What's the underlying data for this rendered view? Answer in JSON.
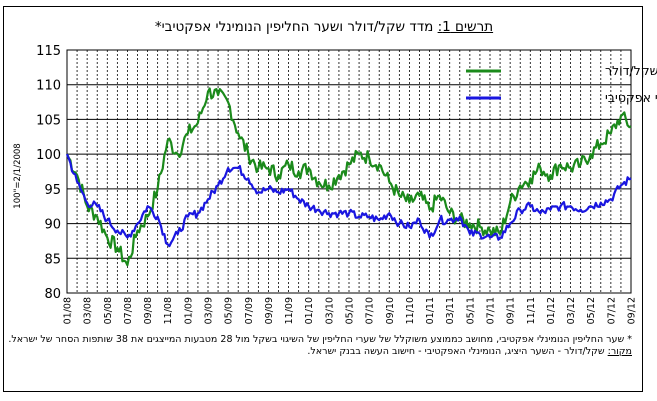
{
  "title": {
    "prefix": "תרשים 1:",
    "text": "מדד שקל/דולר ושער החליפין הנומינלי אפקטיבי*"
  },
  "base_note": "100\"=2/1/2008",
  "notes": {
    "footnote": "* שער החליפין הנומינלי אפקטיבי, מחושב כממוצע משוקלל של שערי החליפין של השיגוי בשקל מול 28 מטבעות המייצגים את 38 שותפות הסחר של ישראל.",
    "source_label": "מקור:",
    "source_text": " שקל/דולר - השער היציג, הנומינלי האפקטיבי - חישוב העשה בבנק ישראל."
  },
  "colors": {
    "usd": "#1b8a1b",
    "effective": "#1a16e0",
    "grid": "#000000"
  },
  "chart_data": {
    "type": "line",
    "title": "מדד שקל/דולר ושער החליפין הנומינלי אפקטיבי*",
    "xlabel": "",
    "ylabel": "",
    "ylim": [
      80,
      115
    ],
    "yticks": [
      80,
      85,
      90,
      95,
      100,
      105,
      110,
      115
    ],
    "x_range": [
      "01/08",
      "09/12"
    ],
    "x_tick_labels": [
      "01/08",
      "03/08",
      "05/08",
      "07/08",
      "09/08",
      "11/08",
      "01/09",
      "03/09",
      "05/09",
      "07/09",
      "09/09",
      "11/09",
      "01/10",
      "03/10",
      "05/10",
      "07/10",
      "09/10",
      "11/10",
      "01/11",
      "03/11",
      "05/11",
      "07/11",
      "09/11",
      "11/11",
      "01/12",
      "03/12",
      "05/12",
      "07/12",
      "09/12"
    ],
    "grid": "vertical dashed + horizontal solid",
    "legend_position": "top-right",
    "series": [
      {
        "name": "שקל/דולר",
        "color": "#1b8a1b",
        "points": [
          [
            "01/08",
            100
          ],
          [
            "02/08",
            97
          ],
          [
            "03/08",
            92.5
          ],
          [
            "04/08",
            91
          ],
          [
            "05/08",
            88
          ],
          [
            "06/08",
            86.5
          ],
          [
            "07/08",
            84
          ],
          [
            "08/08",
            89
          ],
          [
            "09/08",
            91
          ],
          [
            "10/08",
            95
          ],
          [
            "11/08",
            102
          ],
          [
            "12/08",
            100
          ],
          [
            "01/09",
            103
          ],
          [
            "02/09",
            104.5
          ],
          [
            "03/09",
            109
          ],
          [
            "04/09",
            108.5
          ],
          [
            "05/09",
            107.5
          ],
          [
            "06/09",
            103
          ],
          [
            "07/09",
            100
          ],
          [
            "08/09",
            98
          ],
          [
            "09/09",
            98
          ],
          [
            "10/09",
            97
          ],
          [
            "11/09",
            98.5
          ],
          [
            "12/09",
            97.5
          ],
          [
            "01/10",
            98
          ],
          [
            "02/10",
            96
          ],
          [
            "03/10",
            95.5
          ],
          [
            "04/10",
            97
          ],
          [
            "05/10",
            98.5
          ],
          [
            "06/10",
            100
          ],
          [
            "07/10",
            99.5
          ],
          [
            "08/10",
            98.5
          ],
          [
            "09/10",
            96
          ],
          [
            "10/10",
            94
          ],
          [
            "11/10",
            93
          ],
          [
            "12/10",
            94
          ],
          [
            "01/11",
            92
          ],
          [
            "02/11",
            94
          ],
          [
            "03/11",
            91.5
          ],
          [
            "04/11",
            90.5
          ],
          [
            "05/11",
            90
          ],
          [
            "06/11",
            89.5
          ],
          [
            "07/11",
            89
          ],
          [
            "08/11",
            88.5
          ],
          [
            "09/11",
            93
          ],
          [
            "10/11",
            95.5
          ],
          [
            "11/11",
            96.5
          ],
          [
            "12/11",
            98
          ],
          [
            "01/12",
            97
          ],
          [
            "02/12",
            98.5
          ],
          [
            "03/12",
            98
          ],
          [
            "04/12",
            98.5
          ],
          [
            "05/12",
            100
          ],
          [
            "06/12",
            101.5
          ],
          [
            "07/12",
            103
          ],
          [
            "08/12",
            105.5
          ],
          [
            "09/12",
            104
          ]
        ]
      },
      {
        "name": "נומינלי אפקטיבי",
        "color": "#1a16e0",
        "points": [
          [
            "01/08",
            100
          ],
          [
            "02/08",
            96
          ],
          [
            "03/08",
            93
          ],
          [
            "04/08",
            92.5
          ],
          [
            "05/08",
            90.5
          ],
          [
            "06/08",
            89
          ],
          [
            "07/08",
            88
          ],
          [
            "08/08",
            90
          ],
          [
            "09/08",
            92.5
          ],
          [
            "10/08",
            91
          ],
          [
            "11/08",
            87
          ],
          [
            "12/08",
            88.5
          ],
          [
            "01/09",
            91
          ],
          [
            "02/09",
            91.5
          ],
          [
            "03/09",
            93.5
          ],
          [
            "04/09",
            95.5
          ],
          [
            "05/09",
            98
          ],
          [
            "06/09",
            98
          ],
          [
            "07/09",
            96.5
          ],
          [
            "08/09",
            94.5
          ],
          [
            "09/09",
            95
          ],
          [
            "10/09",
            94.5
          ],
          [
            "11/09",
            95
          ],
          [
            "12/09",
            93.5
          ],
          [
            "01/10",
            92.5
          ],
          [
            "02/10",
            92
          ],
          [
            "03/10",
            91.5
          ],
          [
            "04/10",
            91.5
          ],
          [
            "05/10",
            91.5
          ],
          [
            "06/10",
            91
          ],
          [
            "07/10",
            91
          ],
          [
            "08/10",
            90.5
          ],
          [
            "09/10",
            91.5
          ],
          [
            "10/10",
            90
          ],
          [
            "11/10",
            89.5
          ],
          [
            "12/10",
            90.5
          ],
          [
            "01/11",
            88
          ],
          [
            "02/11",
            90.5
          ],
          [
            "03/11",
            90.5
          ],
          [
            "04/11",
            91
          ],
          [
            "05/11",
            88.5
          ],
          [
            "06/11",
            88.5
          ],
          [
            "07/11",
            88
          ],
          [
            "08/11",
            88
          ],
          [
            "09/11",
            90
          ],
          [
            "10/11",
            92
          ],
          [
            "11/11",
            92.5
          ],
          [
            "12/11",
            91.5
          ],
          [
            "01/12",
            92
          ],
          [
            "02/12",
            92.5
          ],
          [
            "03/12",
            92.5
          ],
          [
            "04/12",
            92
          ],
          [
            "05/12",
            92.5
          ],
          [
            "06/12",
            93
          ],
          [
            "07/12",
            93.5
          ],
          [
            "08/12",
            95.5
          ],
          [
            "09/12",
            96.5
          ]
        ]
      }
    ]
  }
}
